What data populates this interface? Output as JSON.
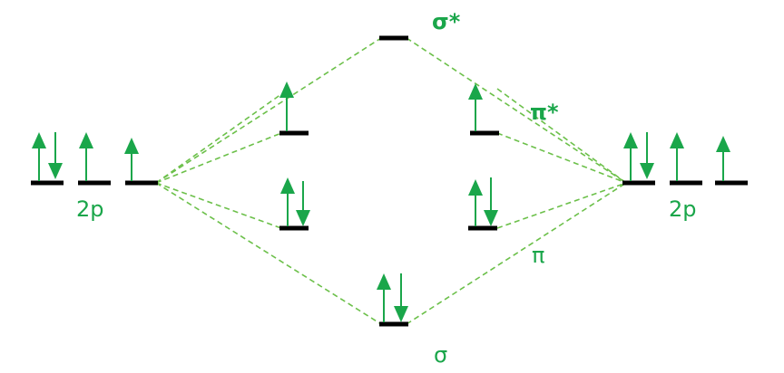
{
  "diagram": {
    "left_atom_label": "2p",
    "right_atom_label": "2p",
    "sigma_star_label": "σ*",
    "pi_star_label": "π*",
    "pi_label": "π",
    "sigma_label": "σ"
  },
  "colors": {
    "electron": "#1aa64a",
    "label": "#1aa64a",
    "correlation": "#6cc04a",
    "level": "#000000"
  }
}
